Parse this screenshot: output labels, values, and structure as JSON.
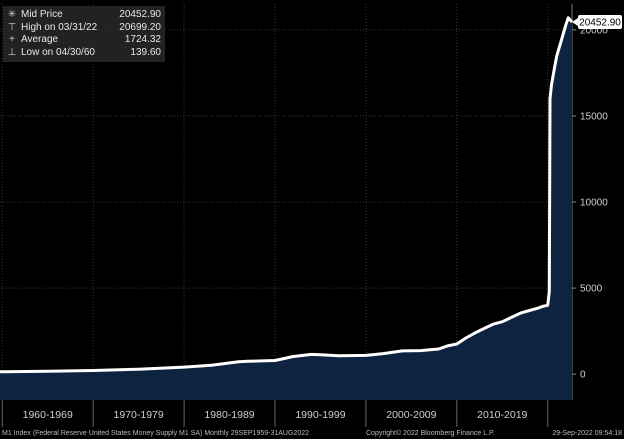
{
  "legend": {
    "rows": [
      {
        "symbol": "✳",
        "label": "Mid Price",
        "value": "20452.90"
      },
      {
        "symbol": "⊤",
        "label": "High on 03/31/22",
        "value": "20699.20"
      },
      {
        "symbol": "+",
        "label": "Average",
        "value": "1724.32"
      },
      {
        "symbol": "⊥",
        "label": "Low on 04/30/60",
        "value": "139.60"
      }
    ]
  },
  "last_value_label": "20452.90",
  "footer": {
    "description": "M1 Index (Federal Reserve United States Money Supply M1 SA)  Monthly 29SEP1959-31AUG2022",
    "copyright": "Copyright© 2022 Bloomberg Finance L.P.",
    "timestamp": "29-Sep-2022 09:54:18"
  },
  "colors": {
    "background": "#000000",
    "line": "#ffffff",
    "area_fill": "#0d2340",
    "grid": "#3a3a3a",
    "axis_text": "#cfcfcf"
  },
  "chart_data": {
    "type": "area",
    "title": "",
    "xlabel": "",
    "ylabel": "",
    "x_categories": [
      "1960-1969",
      "1970-1979",
      "1980-1989",
      "1990-1999",
      "2000-2009",
      "2010-2019"
    ],
    "xlim": [
      1959.75,
      2022.67
    ],
    "ylim": [
      -1500,
      21500
    ],
    "y_ticks": [
      0,
      5000,
      10000,
      15000,
      20000
    ],
    "y_tick_labels": [
      "0",
      "5000",
      "10000",
      "15000",
      "20000"
    ],
    "grid": true,
    "legend_position": "top-left",
    "series": [
      {
        "name": "Mid Price",
        "x": [
          1959.75,
          1960.33,
          1965,
          1970,
          1975,
          1980,
          1983,
          1986,
          1987,
          1990,
          1992,
          1994,
          1995,
          1997,
          2000,
          2002,
          2004,
          2006,
          2008,
          2009,
          2010,
          2011,
          2012,
          2013,
          2014,
          2015,
          2016,
          2017,
          2018,
          2019,
          2019.5,
          2020,
          2020.17,
          2020.25,
          2020.42,
          2020.75,
          2021,
          2021.5,
          2022,
          2022.25,
          2022.67
        ],
        "y": [
          141,
          139.6,
          168,
          215,
          286,
          408,
          520,
          725,
          745,
          795,
          1025,
          1150,
          1130,
          1075,
          1090,
          1200,
          1350,
          1370,
          1460,
          1650,
          1750,
          2100,
          2400,
          2650,
          2900,
          3050,
          3300,
          3550,
          3700,
          3850,
          3950,
          4000,
          4800,
          16000,
          16800,
          17800,
          18500,
          19400,
          20300,
          20699.2,
          20452.9
        ]
      }
    ]
  }
}
